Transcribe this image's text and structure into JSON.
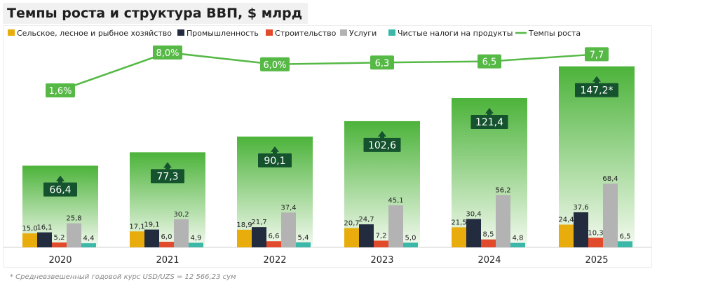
{
  "chart_data": {
    "type": "bar",
    "title": "Темпы роста и структура ВВП, $ млрд",
    "categories": [
      "2020",
      "2021",
      "2022",
      "2023",
      "2024",
      "2025"
    ],
    "series": [
      {
        "name": "Сельское, лесное и рыбное хозяйство",
        "color": "#e8ac0d",
        "values": [
          15.0,
          17.1,
          18.9,
          20.7,
          21.5,
          24.4
        ],
        "labels": [
          "15,0",
          "17,1",
          "18,9",
          "20,7",
          "21,5",
          "24,4"
        ]
      },
      {
        "name": "Промышленность",
        "color": "#232b3f",
        "values": [
          16.1,
          19.1,
          21.7,
          24.7,
          30.4,
          37.6
        ],
        "labels": [
          "16,1",
          "19,1",
          "21,7",
          "24,7",
          "30,4",
          "37,6"
        ]
      },
      {
        "name": "Строительство",
        "color": "#e24a2c",
        "values": [
          5.2,
          6.0,
          6.6,
          7.2,
          8.5,
          10.3
        ],
        "labels": [
          "5,2",
          "6,0",
          "6,6",
          "7,2",
          "8,5",
          "10,3"
        ]
      },
      {
        "name": "Услуги",
        "color": "#b3b3b3",
        "values": [
          25.8,
          30.2,
          37.4,
          45.1,
          56.2,
          68.4
        ],
        "labels": [
          "25,8",
          "30,2",
          "37,4",
          "45,1",
          "56,2",
          "68,4"
        ]
      },
      {
        "name": "Чистые налоги на продукты",
        "color": "#3cb8a8",
        "values": [
          4.4,
          4.9,
          5.4,
          5.0,
          4.8,
          6.5
        ],
        "labels": [
          "4,4",
          "4,9",
          "5,4",
          "5,0",
          "4,8",
          "6,5"
        ]
      }
    ],
    "totals": {
      "name": "ВВП",
      "values": [
        66.4,
        77.3,
        90.1,
        102.6,
        121.4,
        147.2
      ],
      "labels": [
        "66,4",
        "77,3",
        "90,1",
        "102,6",
        "121,4",
        "147,2*"
      ]
    },
    "growth": {
      "name": "Темпы роста",
      "color": "#56b946",
      "values": [
        1.6,
        8.0,
        6.0,
        6.3,
        6.5,
        7.7
      ],
      "labels": [
        "1,6%",
        "8,0%",
        "6,0%",
        "6,3",
        "6,5",
        "7,7"
      ]
    },
    "legend_position": "top-left",
    "grid": false
  },
  "footnote": "* Средневзвешенный  годовой курс USD/UZS = 12 566,23 сум",
  "colors": {
    "gradient_top": "#4cb33a",
    "gradient_bottom": "#f4faf0",
    "total_label_bg": "#14532d",
    "axis": "#cfcfcf"
  }
}
